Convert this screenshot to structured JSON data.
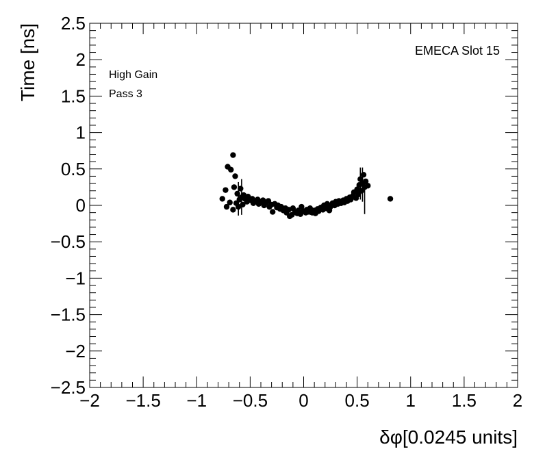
{
  "chart_data": {
    "type": "scatter",
    "title": "",
    "xlabel": "δφ[0.0245 units]",
    "ylabel": "Time [ns]",
    "xlim": [
      -2,
      2
    ],
    "ylim": [
      -2.5,
      2.5
    ],
    "x_ticks": [
      -2,
      -1.5,
      -1,
      -0.5,
      0,
      0.5,
      1,
      1.5,
      2
    ],
    "x_tick_labels": [
      "−2",
      "−1.5",
      "−1",
      "−0.5",
      "0",
      "0.5",
      "1",
      "1.5",
      "2"
    ],
    "y_ticks": [
      -2.5,
      -2,
      -1.5,
      -1,
      -0.5,
      0,
      0.5,
      1,
      1.5,
      2,
      2.5
    ],
    "y_tick_labels": [
      "−2.5",
      "−2",
      "−1.5",
      "−1",
      "−0.5",
      "0",
      "0.5",
      "1",
      "1.5",
      "2",
      "2.5"
    ],
    "grid": false,
    "legend": "none",
    "annotations": {
      "top_right": "EMECA Slot 15",
      "line1": "High Gain",
      "line2": "Pass 3"
    },
    "marker_color": "#000000",
    "series": [
      {
        "points": [
          [
            -0.76,
            0.09
          ],
          [
            -0.73,
            0.21
          ],
          [
            -0.72,
            -0.02
          ],
          [
            -0.71,
            0.53
          ],
          [
            -0.69,
            0.04
          ],
          [
            -0.68,
            0.49
          ],
          [
            -0.66,
            0.69
          ],
          [
            -0.66,
            -0.06
          ],
          [
            -0.65,
            0.25
          ],
          [
            -0.64,
            0.4
          ],
          [
            -0.63,
            0.03
          ],
          [
            -0.62,
            0.16
          ],
          [
            -0.61,
            -0.02
          ],
          [
            -0.6,
            0.08
          ],
          [
            -0.59,
            0.23
          ],
          [
            -0.58,
            0.11
          ],
          [
            -0.57,
            0.01
          ],
          [
            -0.56,
            0.14
          ],
          [
            -0.55,
            0.09
          ],
          [
            -0.53,
            0.05
          ],
          [
            -0.52,
            0.12
          ],
          [
            -0.5,
            0.07
          ],
          [
            -0.48,
            0.09
          ],
          [
            -0.47,
            0.03
          ],
          [
            -0.45,
            0.06
          ],
          [
            -0.43,
            0.08
          ],
          [
            -0.42,
            0.02
          ],
          [
            -0.4,
            0.05
          ],
          [
            -0.38,
            0.07
          ],
          [
            -0.37,
            0.0
          ],
          [
            -0.35,
            0.04
          ],
          [
            -0.33,
            0.06
          ],
          [
            -0.32,
            -0.02
          ],
          [
            -0.3,
            0.01
          ],
          [
            -0.29,
            -0.09
          ],
          [
            -0.27,
            0.02
          ],
          [
            -0.25,
            -0.03
          ],
          [
            -0.24,
            0.0
          ],
          [
            -0.22,
            -0.05
          ],
          [
            -0.21,
            -0.02
          ],
          [
            -0.19,
            -0.07
          ],
          [
            -0.17,
            -0.04
          ],
          [
            -0.16,
            -0.1
          ],
          [
            -0.14,
            -0.06
          ],
          [
            -0.13,
            -0.15
          ],
          [
            -0.11,
            -0.13
          ],
          [
            -0.1,
            -0.04
          ],
          [
            -0.08,
            -0.09
          ],
          [
            -0.06,
            -0.11
          ],
          [
            -0.05,
            -0.07
          ],
          [
            -0.03,
            -0.12
          ],
          [
            -0.02,
            -0.02
          ],
          [
            0.0,
            -0.08
          ],
          [
            0.02,
            -0.1
          ],
          [
            0.03,
            -0.06
          ],
          [
            0.05,
            -0.09
          ],
          [
            0.06,
            -0.04
          ],
          [
            0.08,
            -0.1
          ],
          [
            0.1,
            -0.07
          ],
          [
            0.11,
            -0.11
          ],
          [
            0.13,
            -0.05
          ],
          [
            0.14,
            -0.08
          ],
          [
            0.16,
            -0.03
          ],
          [
            0.18,
            -0.06
          ],
          [
            0.19,
            0.0
          ],
          [
            0.21,
            -0.04
          ],
          [
            0.22,
            0.02
          ],
          [
            0.24,
            -0.07
          ],
          [
            0.25,
            -0.02
          ],
          [
            0.27,
            0.03
          ],
          [
            0.29,
            0.0
          ],
          [
            0.3,
            0.05
          ],
          [
            0.32,
            0.02
          ],
          [
            0.33,
            0.06
          ],
          [
            0.35,
            0.03
          ],
          [
            0.37,
            0.07
          ],
          [
            0.38,
            0.04
          ],
          [
            0.4,
            0.09
          ],
          [
            0.41,
            0.06
          ],
          [
            0.43,
            0.11
          ],
          [
            0.44,
            0.08
          ],
          [
            0.46,
            0.13
          ],
          [
            0.47,
            0.18
          ],
          [
            0.49,
            0.1
          ],
          [
            0.5,
            0.22
          ],
          [
            0.51,
            0.15
          ],
          [
            0.52,
            0.28
          ],
          [
            0.53,
            0.36
          ],
          [
            0.54,
            0.2
          ],
          [
            0.55,
            0.3
          ],
          [
            0.56,
            0.42
          ],
          [
            0.57,
            0.25
          ],
          [
            0.58,
            0.33
          ],
          [
            0.6,
            0.27
          ],
          [
            0.81,
            0.09
          ]
        ],
        "error_bars": [
          {
            "x": -0.61,
            "y": 0.09,
            "low": -0.14,
            "high": 0.32
          },
          {
            "x": -0.58,
            "y": 0.11,
            "low": -0.13,
            "high": 0.36
          },
          {
            "x": 0.53,
            "y": 0.36,
            "low": 0.08,
            "high": 0.52
          },
          {
            "x": 0.55,
            "y": 0.3,
            "low": 0.05,
            "high": 0.52
          },
          {
            "x": 0.57,
            "y": 0.1,
            "low": -0.12,
            "high": 0.35
          }
        ]
      }
    ]
  }
}
